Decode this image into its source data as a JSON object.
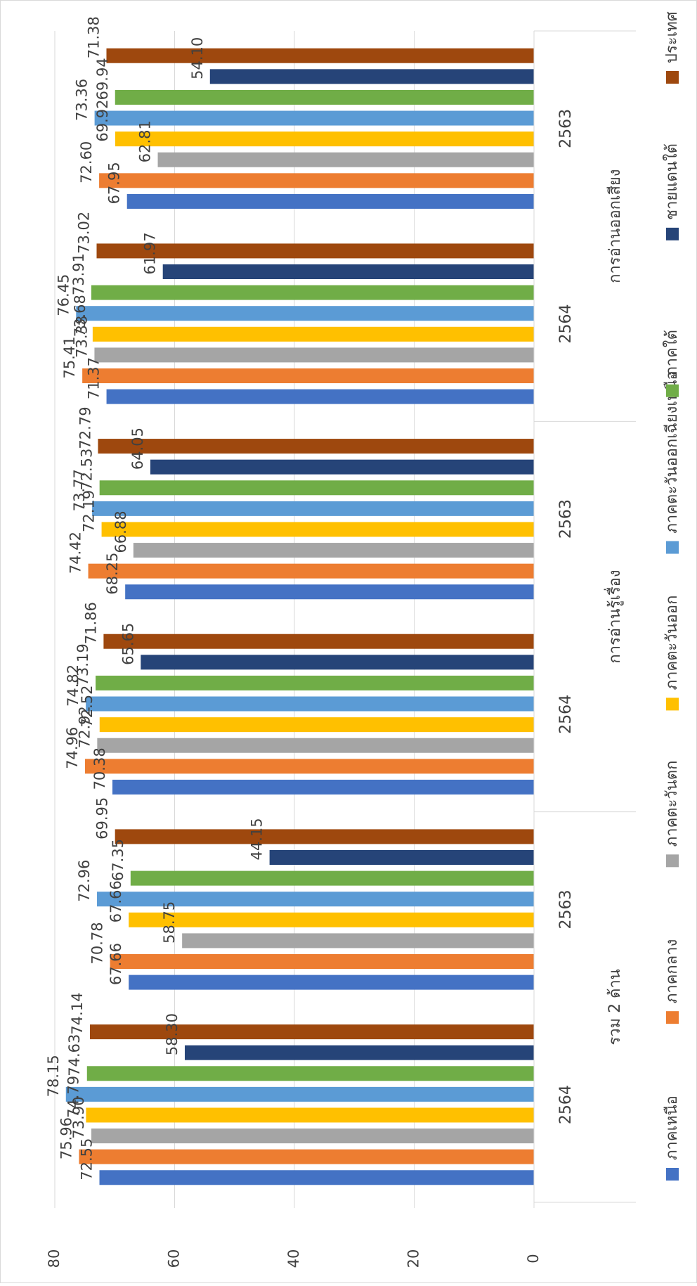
{
  "chart_data": {
    "type": "bar",
    "orientation": "horizontal-bars-vertical-page",
    "ylim": [
      0,
      80
    ],
    "y_ticks": [
      "0",
      "20",
      "40",
      "60",
      "80"
    ],
    "grid": true,
    "legend_position": "bottom",
    "group_labels": [
      "การอ่านออกเสียง",
      "การอ่านรู้เรื่อง",
      "รวม 2 ด้าน"
    ],
    "categories": [
      {
        "year": "2563",
        "group": 0
      },
      {
        "year": "2564",
        "group": 0
      },
      {
        "year": "2563",
        "group": 1
      },
      {
        "year": "2564",
        "group": 1
      },
      {
        "year": "2563",
        "group": 2
      },
      {
        "year": "2564",
        "group": 2
      }
    ],
    "series": [
      {
        "name": "ภาคเหนือ",
        "color": "#4472C4",
        "values": [
          72.55,
          67.66,
          70.38,
          68.25,
          71.37,
          67.95
        ],
        "labels": [
          "72.55",
          "67.66",
          "70.38",
          "68.25",
          "71.37",
          "67.95"
        ]
      },
      {
        "name": "ภาคกลาง",
        "color": "#ED7D31",
        "values": [
          75.96,
          70.78,
          74.96,
          74.42,
          75.41,
          72.6
        ],
        "labels": [
          "75.96",
          "70.78",
          "74.96",
          "74.42",
          "75.41",
          "72.60"
        ]
      },
      {
        "name": "ภาคตะวันตก",
        "color": "#A5A5A5",
        "values": [
          73.9,
          58.75,
          72.92,
          66.88,
          73.38,
          62.81
        ],
        "labels": [
          "73.90",
          "58.75",
          "72.92",
          "66.88",
          "73.38",
          "62.81"
        ]
      },
      {
        "name": "ภาคตะวันออก",
        "color": "#FFC000",
        "values": [
          74.79,
          67.66,
          72.52,
          72.19,
          73.68,
          69.92
        ],
        "labels": [
          "74.79",
          "67.66",
          "72.52",
          "72.19",
          "73.68",
          "69.92"
        ]
      },
      {
        "name": "ภาคตะวันออกเฉียงเหนือ",
        "color": "#5B9BD5",
        "values": [
          78.15,
          72.96,
          74.82,
          73.77,
          76.45,
          73.36
        ],
        "labels": [
          "78.15",
          "72.96",
          "74.82",
          "73.77",
          "76.45",
          "73.36"
        ]
      },
      {
        "name": "ภาคใต้",
        "color": "#70AD47",
        "values": [
          74.63,
          67.35,
          73.19,
          72.53,
          73.91,
          69.94
        ],
        "labels": [
          "74.63",
          "67.35",
          "73.19",
          "72.53",
          "73.91",
          "69.94"
        ]
      },
      {
        "name": "ชายแดนใต้",
        "color": "#264478",
        "values": [
          58.3,
          44.15,
          65.65,
          64.05,
          61.97,
          54.1
        ],
        "labels": [
          "58.30",
          "44.15",
          "65.65",
          "64.05",
          "61.97",
          "54.10"
        ]
      },
      {
        "name": "ประเทศ",
        "color": "#9E480E",
        "values": [
          74.14,
          69.95,
          71.86,
          72.79,
          73.02,
          71.38
        ],
        "labels": [
          "74.14",
          "69.95",
          "71.86",
          "72.79",
          "73.02",
          "71.38"
        ]
      }
    ]
  }
}
